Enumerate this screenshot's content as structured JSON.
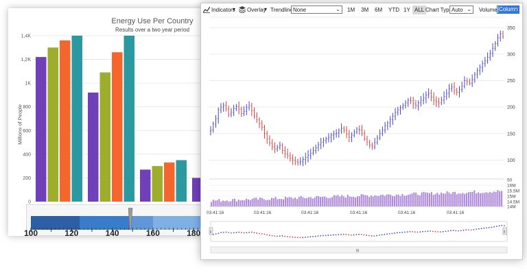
{
  "bar_chart": {
    "chart_data": {
      "type": "bar",
      "title": "Energy Use Per Country",
      "subtitle": "Results over a two year period",
      "ylabel": "Millions of People",
      "ylim": [
        0,
        1400
      ],
      "yticks": [
        "0",
        "200",
        "400",
        "600",
        "800",
        "1K",
        "1,2K",
        "1,4K"
      ],
      "ytick_values": [
        0,
        200,
        400,
        600,
        800,
        1000,
        1200,
        1400
      ],
      "groups": [
        [
          1220,
          1300,
          1360,
          1400
        ],
        [
          920,
          1090,
          1260,
          1400
        ],
        [
          270,
          300,
          330,
          350
        ],
        [
          200
        ]
      ],
      "colors": [
        "#7040b8",
        "#9cae2c",
        "#f4662c",
        "#2a9aa0"
      ]
    }
  },
  "gauge": {
    "labels": [
      "100",
      "120",
      "140",
      "160",
      "180"
    ],
    "label_values": [
      100,
      120,
      140,
      160,
      180
    ],
    "range": [
      100,
      185
    ],
    "pointer_value": 149,
    "bands": [
      {
        "from": 100,
        "to": 124,
        "color": "#2c5fa3"
      },
      {
        "from": 124,
        "to": 149,
        "color": "#3a7ccc"
      },
      {
        "from": 149,
        "to": 160,
        "color": "#5f97d8"
      },
      {
        "from": 160,
        "to": 185,
        "color": "#7fb0e4"
      }
    ]
  },
  "toolbar": {
    "indicators_label": "Indicators",
    "overlay_label": "Overlay",
    "trendline_label": "Trendline",
    "trendline_value": "None",
    "ranges": [
      "1M",
      "3M",
      "6M",
      "YTD",
      "1Y",
      "ALL"
    ],
    "active_range": "ALL",
    "chart_type_label": "Chart Type",
    "chart_type_value": "Auto",
    "volume_label": "Volume",
    "volume_value": "Column",
    "chevron_glyph": "⌄",
    "dropdown_glyph": "▾"
  },
  "stock_chart": {
    "chart_data": {
      "type": "line",
      "price_ticks": [
        "100",
        "150",
        "200",
        "250",
        "300",
        "350"
      ],
      "price_tick_values": [
        100,
        150,
        200,
        250,
        300,
        350
      ],
      "price_range": [
        72,
        362
      ],
      "volume_ticks": [
        "50",
        "16M",
        "15.5M",
        "15M",
        "14.5M",
        "14M"
      ],
      "time_labels": [
        "03:41:16",
        "03:41:16",
        "03:41:16",
        "03:41:16",
        "03:41:16",
        "03:41:16"
      ],
      "up_color": "#4444cc",
      "down_color": "#d04040",
      "close_series": [
        157,
        168,
        178,
        195,
        200,
        203,
        196,
        186,
        190,
        197,
        201,
        196,
        188,
        192,
        199,
        203,
        193,
        183,
        176,
        169,
        162,
        150,
        140,
        132,
        125,
        121,
        124,
        128,
        118,
        112,
        108,
        104,
        100,
        97,
        95,
        97,
        101,
        105,
        109,
        113,
        118,
        123,
        129,
        134,
        137,
        140,
        143,
        147,
        149,
        151,
        155,
        160,
        156,
        149,
        143,
        147,
        153,
        158,
        157,
        150,
        140,
        134,
        128,
        125,
        133,
        142,
        150,
        157,
        165,
        170,
        176,
        183,
        190,
        195,
        199,
        203,
        208,
        213,
        212,
        206,
        203,
        208,
        213,
        217,
        223,
        226,
        219,
        213,
        210,
        208,
        213,
        220,
        226,
        235,
        238,
        232,
        228,
        233,
        240,
        250,
        248,
        245,
        252,
        262,
        269,
        275,
        282,
        287,
        294,
        302,
        311,
        320,
        331,
        338,
        333
      ]
    }
  },
  "navigator": {
    "grip_glyph": "Ⅲ",
    "left_handle_glyph": "‖",
    "right_handle_glyph": "‖"
  }
}
